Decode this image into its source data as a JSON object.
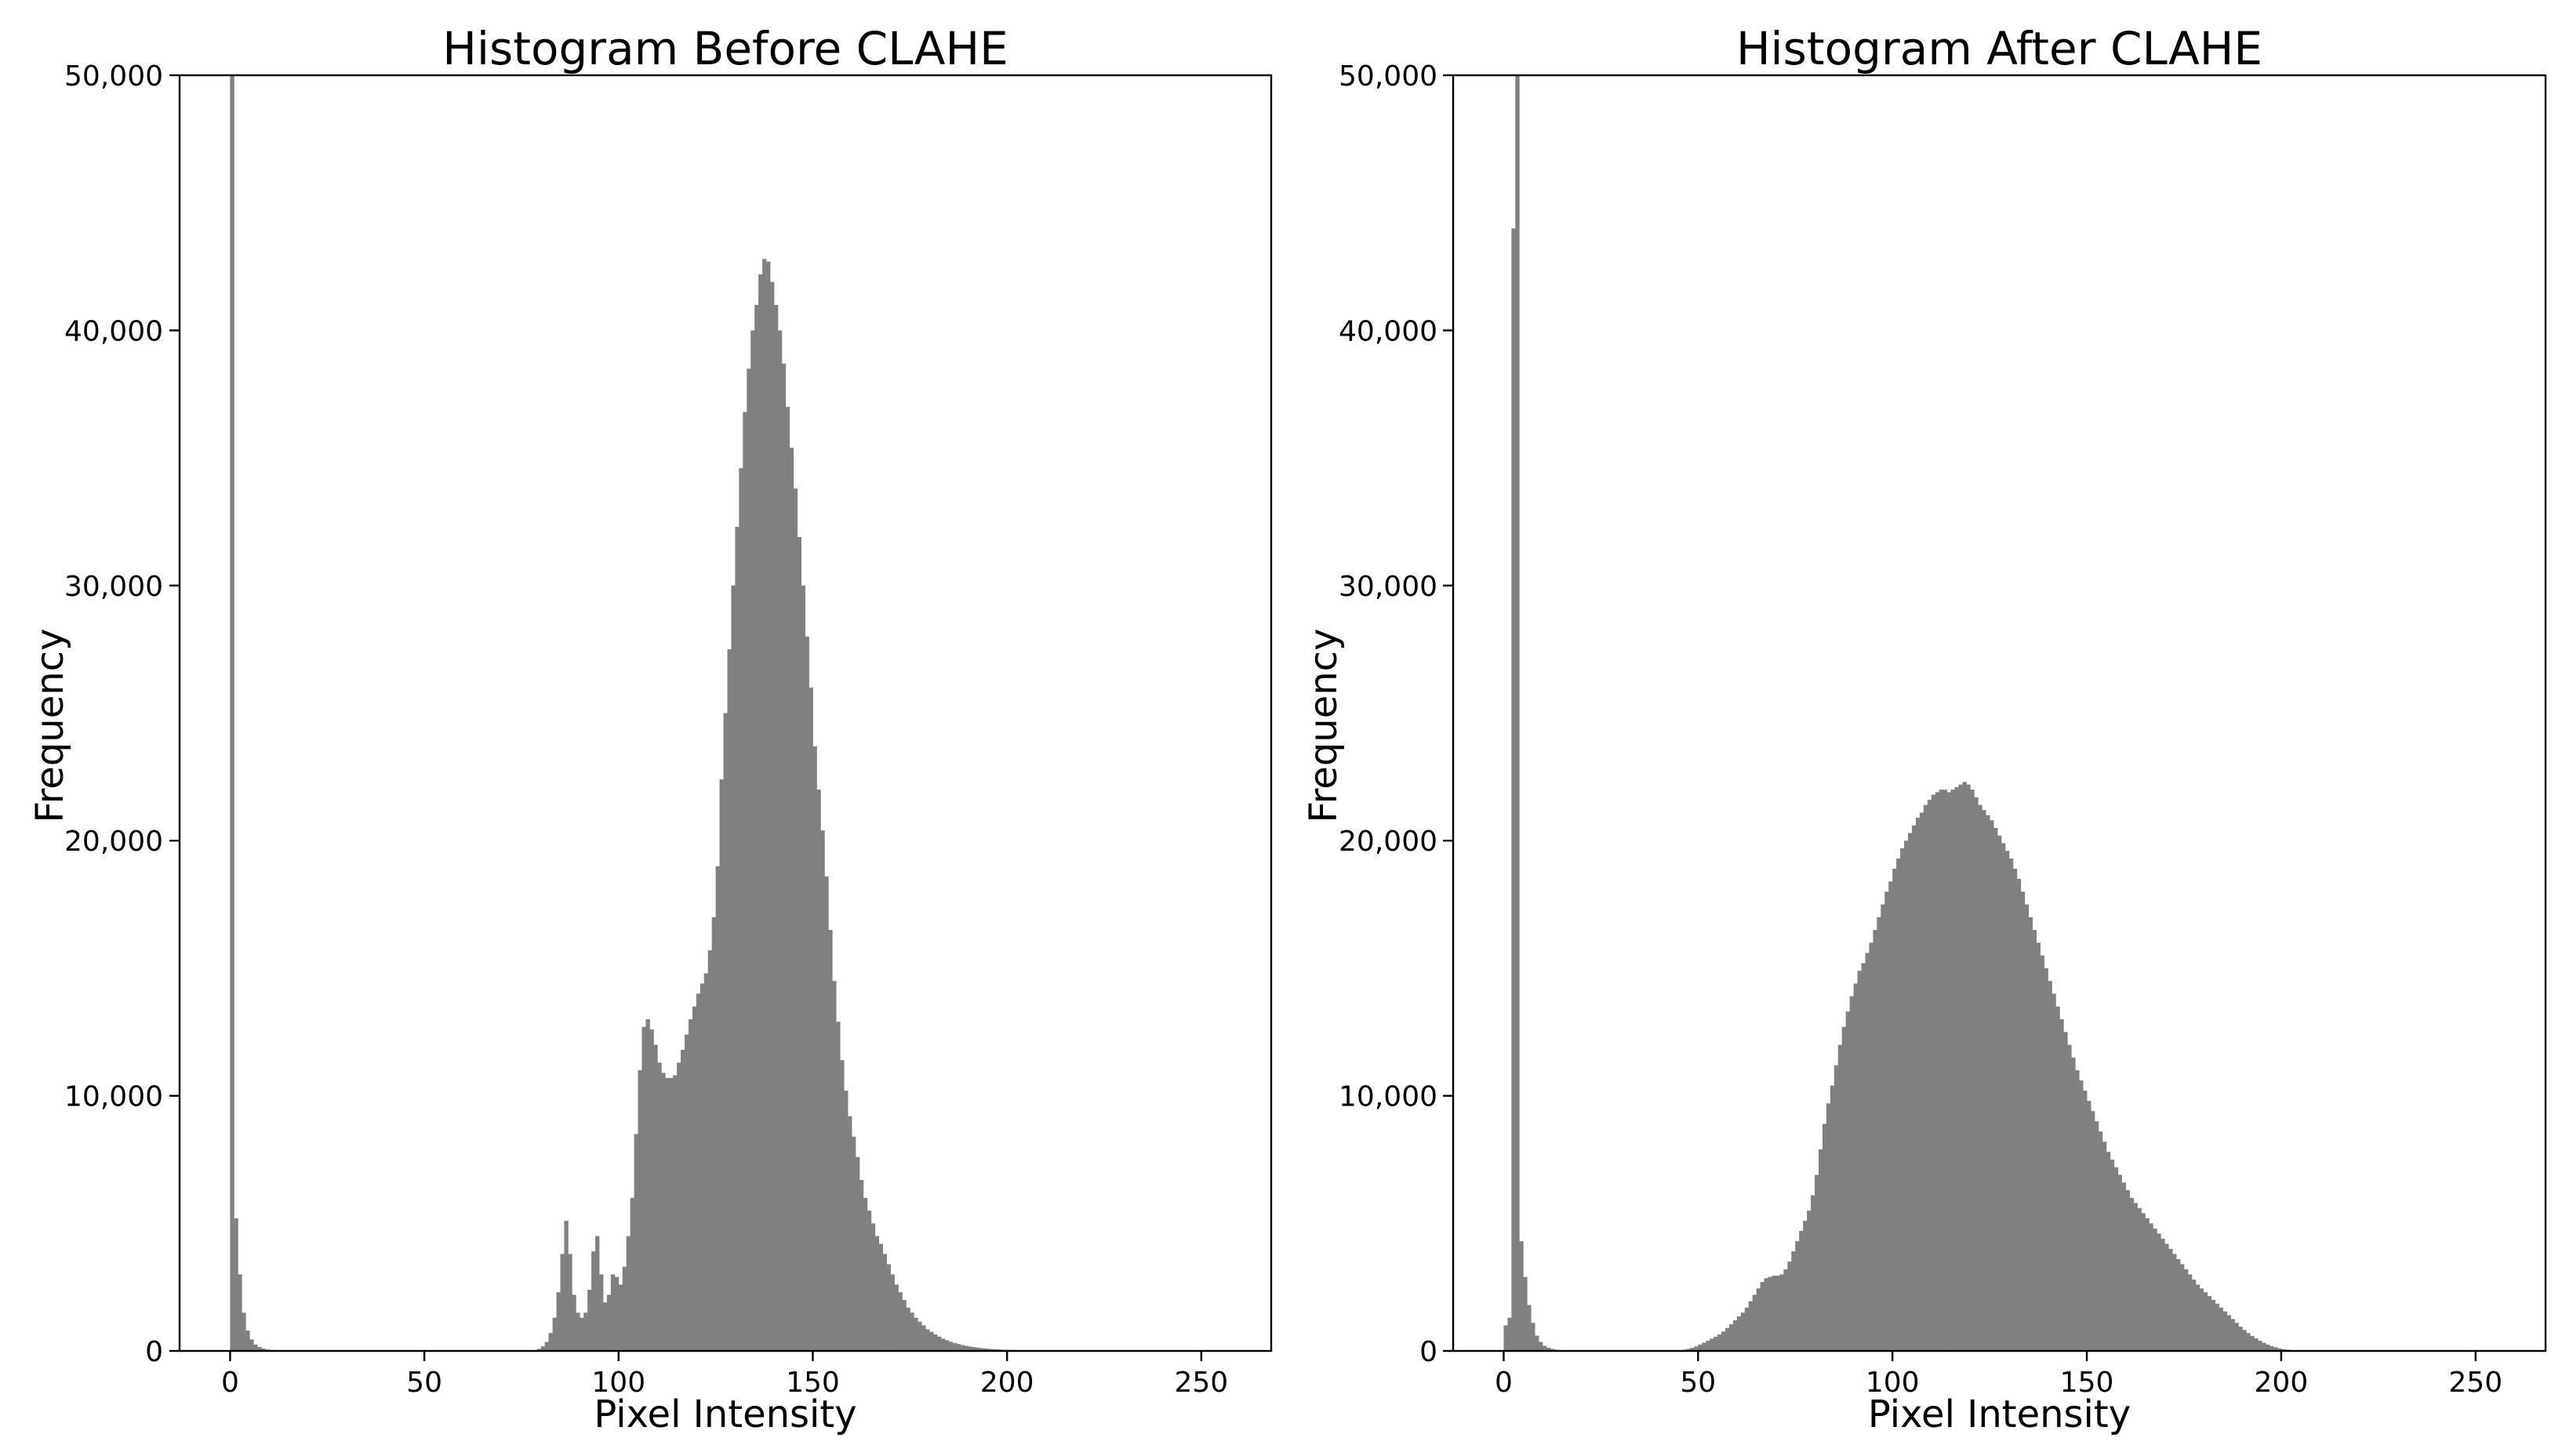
{
  "colors": {
    "bar": "#808080",
    "axis": "#000000",
    "background": "#ffffff"
  },
  "chart_data": [
    {
      "type": "histogram",
      "title": "Histogram Before CLAHE",
      "xlabel": "Pixel Intensity",
      "ylabel": "Frequency",
      "xlim": [
        -13,
        268
      ],
      "ylim": [
        0,
        50000
      ],
      "xticks": [
        0,
        50,
        100,
        150,
        200,
        250
      ],
      "xtick_labels": [
        "0",
        "50",
        "100",
        "150",
        "200",
        "250"
      ],
      "yticks": [
        0,
        10000,
        20000,
        30000,
        40000,
        50000
      ],
      "ytick_labels": [
        "0",
        "10,000",
        "20,000",
        "30,000",
        "40,000",
        "50,000"
      ],
      "grid": false,
      "bin_width": 1,
      "x_start": 0,
      "values": [
        50000,
        5200,
        3000,
        1500,
        800,
        450,
        250,
        150,
        100,
        60,
        40,
        30,
        20,
        15,
        10,
        10,
        10,
        10,
        10,
        10,
        10,
        10,
        10,
        10,
        10,
        10,
        10,
        10,
        10,
        10,
        10,
        10,
        10,
        10,
        10,
        10,
        10,
        10,
        10,
        10,
        10,
        10,
        10,
        10,
        10,
        10,
        10,
        10,
        10,
        10,
        10,
        10,
        10,
        10,
        10,
        10,
        10,
        10,
        10,
        10,
        10,
        10,
        10,
        10,
        10,
        10,
        10,
        10,
        10,
        10,
        10,
        10,
        10,
        10,
        10,
        10,
        10,
        10,
        30,
        80,
        180,
        350,
        700,
        1300,
        2300,
        3800,
        5100,
        3800,
        2200,
        1500,
        1300,
        1500,
        2400,
        3900,
        4500,
        3000,
        1900,
        2200,
        3000,
        2900,
        2600,
        3300,
        4500,
        6000,
        8500,
        11000,
        12700,
        13000,
        12600,
        12000,
        11300,
        10900,
        10700,
        10700,
        10800,
        11300,
        11800,
        12400,
        13000,
        13500,
        14000,
        14400,
        14800,
        15700,
        17000,
        19000,
        22400,
        25000,
        27500,
        30000,
        32300,
        34600,
        36800,
        38500,
        40000,
        41000,
        42200,
        42800,
        42700,
        41900,
        41000,
        40000,
        38700,
        37000,
        35400,
        33800,
        31900,
        30000,
        28000,
        26000,
        23700,
        22000,
        20400,
        18600,
        16500,
        14500,
        12900,
        11400,
        10200,
        9200,
        8400,
        7600,
        6700,
        6000,
        5500,
        5000,
        4500,
        4200,
        3800,
        3400,
        3000,
        2600,
        2300,
        2000,
        1700,
        1500,
        1300,
        1150,
        1000,
        850,
        750,
        650,
        560,
        480,
        420,
        360,
        310,
        270,
        230,
        200,
        170,
        150,
        130,
        110,
        95,
        80,
        70,
        60,
        50,
        45,
        40,
        35,
        30,
        25,
        20,
        15,
        10
      ]
    },
    {
      "type": "histogram",
      "title": "Histogram After CLAHE",
      "xlabel": "Pixel Intensity",
      "ylabel": "Frequency",
      "xlim": [
        -13,
        268
      ],
      "ylim": [
        0,
        50000
      ],
      "xticks": [
        0,
        50,
        100,
        150,
        200,
        250
      ],
      "xtick_labels": [
        "0",
        "50",
        "100",
        "150",
        "200",
        "250"
      ],
      "yticks": [
        0,
        10000,
        20000,
        30000,
        40000,
        50000
      ],
      "ytick_labels": [
        "0",
        "10,000",
        "20,000",
        "30,000",
        "40,000",
        "50,000"
      ],
      "grid": false,
      "bin_width": 1,
      "x_start": 0,
      "values": [
        1000,
        1300,
        44000,
        50000,
        4300,
        2900,
        1800,
        1100,
        600,
        350,
        200,
        120,
        80,
        50,
        30,
        20,
        15,
        10,
        10,
        10,
        10,
        10,
        10,
        10,
        10,
        10,
        10,
        10,
        10,
        10,
        10,
        10,
        10,
        10,
        10,
        10,
        10,
        10,
        10,
        10,
        10,
        10,
        10,
        10,
        20,
        30,
        50,
        80,
        120,
        180,
        250,
        320,
        400,
        480,
        560,
        650,
        760,
        900,
        1050,
        1200,
        1350,
        1500,
        1700,
        1950,
        2200,
        2450,
        2700,
        2850,
        2900,
        2950,
        2950,
        3000,
        3200,
        3500,
        3900,
        4300,
        4700,
        5100,
        5500,
        6100,
        6900,
        7900,
        8900,
        9700,
        10400,
        11200,
        12000,
        12700,
        13300,
        13900,
        14400,
        14900,
        15200,
        15600,
        16000,
        16500,
        17000,
        17500,
        18000,
        18400,
        18900,
        19300,
        19700,
        20000,
        20300,
        20600,
        20900,
        21100,
        21400,
        21600,
        21800,
        21900,
        22000,
        22000,
        21900,
        22000,
        22100,
        22200,
        22300,
        22200,
        22000,
        21700,
        21400,
        21200,
        21000,
        20800,
        20500,
        20200,
        19900,
        19600,
        19300,
        18900,
        18500,
        18000,
        17500,
        17000,
        16500,
        16000,
        15500,
        15000,
        14500,
        14000,
        13500,
        13000,
        12500,
        12000,
        11500,
        11000,
        10600,
        10200,
        9800,
        9400,
        9000,
        8600,
        8200,
        7800,
        7500,
        7200,
        6900,
        6600,
        6300,
        6000,
        5800,
        5600,
        5400,
        5200,
        5000,
        4800,
        4600,
        4400,
        4200,
        4000,
        3800,
        3600,
        3400,
        3200,
        3000,
        2800,
        2600,
        2450,
        2300,
        2150,
        2000,
        1850,
        1700,
        1550,
        1400,
        1250,
        1100,
        950,
        820,
        700,
        590,
        490,
        400,
        320,
        250,
        190,
        140,
        100,
        70,
        50,
        30,
        20,
        10,
        5
      ]
    }
  ]
}
